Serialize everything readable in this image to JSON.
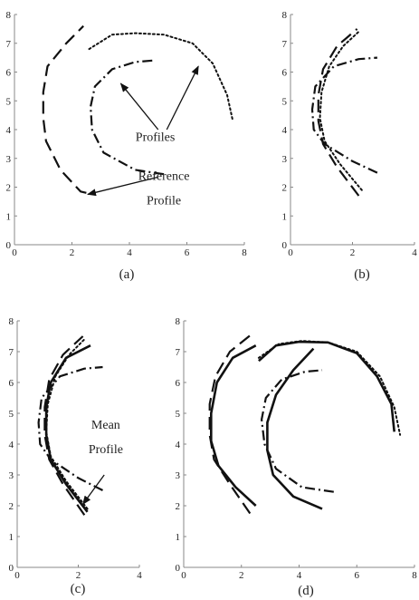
{
  "chart_data": [
    {
      "id": "a",
      "type": "line",
      "panel_label": "(a)",
      "xlim": [
        0,
        8
      ],
      "ylim": [
        0,
        8
      ],
      "xticks": [
        "0",
        "2",
        "4",
        "6",
        "8"
      ],
      "yticks": [
        "0",
        "1",
        "2",
        "3",
        "4",
        "5",
        "6",
        "7",
        "8"
      ],
      "axes": "left-bottom",
      "series": [
        {
          "style": "dashed",
          "x": [
            2.5,
            2.3,
            1.6,
            1.1,
            1.0,
            1.0,
            1.15,
            1.8,
            2.4
          ],
          "y": [
            1.8,
            1.85,
            2.6,
            3.6,
            4.4,
            5.3,
            6.2,
            7.0,
            7.6
          ]
        },
        {
          "style": "dotted",
          "x": [
            2.6,
            3.4,
            4.2,
            5.2,
            6.2,
            6.9,
            7.4,
            7.6
          ],
          "y": [
            6.8,
            7.3,
            7.35,
            7.3,
            7.0,
            6.3,
            5.2,
            4.3
          ]
        },
        {
          "style": "dashdot",
          "x": [
            5.2,
            4.2,
            3.1,
            2.7,
            2.65,
            2.8,
            3.4,
            4.2,
            4.8
          ],
          "y": [
            2.45,
            2.6,
            3.2,
            4.0,
            4.8,
            5.5,
            6.1,
            6.35,
            6.4
          ]
        }
      ],
      "annotations": [
        {
          "text": "Profiles",
          "x": 4.9,
          "y": 3.6
        },
        {
          "text": "Reference",
          "x": 5.2,
          "y": 2.25
        },
        {
          "text": "Profile",
          "x": 5.2,
          "y": 1.4
        }
      ],
      "arrows": [
        {
          "from": [
            5.0,
            4.0
          ],
          "to": [
            3.7,
            5.6
          ]
        },
        {
          "from": [
            5.3,
            4.0
          ],
          "to": [
            6.4,
            6.2
          ]
        },
        {
          "from": [
            5.0,
            2.35
          ],
          "to": [
            2.55,
            1.75
          ]
        }
      ]
    },
    {
      "id": "b",
      "type": "line",
      "panel_label": "(b)",
      "xlim": [
        0,
        4
      ],
      "ylim": [
        0,
        8
      ],
      "xticks": [
        "0",
        "2",
        "4"
      ],
      "yticks": [
        "0",
        "1",
        "2",
        "3",
        "4",
        "5",
        "6",
        "7",
        "8"
      ],
      "axes": "left-bottom",
      "series": [
        {
          "style": "dashed",
          "x": [
            2.2,
            1.5,
            1.05,
            0.9,
            0.9,
            1.05,
            1.5,
            2.15
          ],
          "y": [
            1.7,
            2.7,
            3.5,
            4.3,
            5.2,
            6.1,
            6.9,
            7.5
          ]
        },
        {
          "style": "dotted",
          "x": [
            2.3,
            1.6,
            1.1,
            0.95,
            1.0,
            1.25,
            1.7,
            2.2
          ],
          "y": [
            1.9,
            2.8,
            3.6,
            4.4,
            5.3,
            6.2,
            6.9,
            7.4
          ]
        },
        {
          "style": "dashdot",
          "x": [
            2.8,
            2.0,
            1.1,
            0.75,
            0.7,
            0.8,
            1.4,
            2.2,
            2.8
          ],
          "y": [
            2.5,
            2.9,
            3.5,
            4.0,
            4.7,
            5.5,
            6.2,
            6.45,
            6.5
          ]
        }
      ]
    },
    {
      "id": "c",
      "type": "line",
      "panel_label": "(c)",
      "xlim": [
        0,
        4
      ],
      "ylim": [
        0,
        8
      ],
      "xticks": [
        "0",
        "2",
        "4"
      ],
      "yticks": [
        "0",
        "1",
        "2",
        "3",
        "4",
        "5",
        "6",
        "7",
        "8"
      ],
      "axes": "left-bottom",
      "series": [
        {
          "style": "dashed",
          "x": [
            2.2,
            1.5,
            1.05,
            0.9,
            0.9,
            1.05,
            1.5,
            2.15
          ],
          "y": [
            1.7,
            2.7,
            3.5,
            4.3,
            5.2,
            6.1,
            6.9,
            7.5
          ]
        },
        {
          "style": "dotted",
          "x": [
            2.3,
            1.6,
            1.1,
            0.95,
            1.0,
            1.25,
            1.7,
            2.2
          ],
          "y": [
            1.9,
            2.8,
            3.6,
            4.4,
            5.3,
            6.2,
            6.9,
            7.4
          ]
        },
        {
          "style": "dashdot",
          "x": [
            2.8,
            2.0,
            1.1,
            0.75,
            0.7,
            0.8,
            1.4,
            2.2,
            2.8
          ],
          "y": [
            2.5,
            2.9,
            3.5,
            4.0,
            4.7,
            5.5,
            6.2,
            6.45,
            6.5
          ]
        },
        {
          "style": "solid",
          "x": [
            2.3,
            1.6,
            1.1,
            0.95,
            0.95,
            1.1,
            1.6,
            2.4
          ],
          "y": [
            1.8,
            2.7,
            3.5,
            4.3,
            5.2,
            6.0,
            6.8,
            7.2
          ]
        }
      ],
      "annotations": [
        {
          "text": "Mean",
          "x": 2.9,
          "y": 4.5
        },
        {
          "text": "Profile",
          "x": 2.9,
          "y": 3.7
        }
      ],
      "arrows": [
        {
          "from": [
            2.85,
            3.0
          ],
          "to": [
            2.15,
            2.05
          ]
        }
      ]
    },
    {
      "id": "d",
      "type": "line",
      "panel_label": "(d)",
      "xlim": [
        0,
        8
      ],
      "ylim": [
        0,
        8
      ],
      "xticks": [
        "0",
        "2",
        "4",
        "6",
        "8"
      ],
      "yticks": [
        "0",
        "1",
        "2",
        "3",
        "4",
        "5",
        "6",
        "7",
        "8"
      ],
      "axes": "left-bottom",
      "series": [
        {
          "style": "dashed",
          "x": [
            2.3,
            1.6,
            1.05,
            0.9,
            0.9,
            1.1,
            1.6,
            2.4
          ],
          "y": [
            1.75,
            2.7,
            3.5,
            4.3,
            5.3,
            6.2,
            7.0,
            7.6
          ]
        },
        {
          "style": "solid",
          "x": [
            2.5,
            1.8,
            1.2,
            0.95,
            0.95,
            1.15,
            1.7,
            2.5
          ],
          "y": [
            2.0,
            2.6,
            3.3,
            4.1,
            5.0,
            6.0,
            6.8,
            7.2
          ]
        },
        {
          "style": "dotted",
          "x": [
            2.6,
            3.3,
            4.1,
            5.0,
            6.0,
            6.8,
            7.3,
            7.5
          ],
          "y": [
            6.8,
            7.25,
            7.35,
            7.3,
            7.0,
            6.2,
            5.2,
            4.3
          ]
        },
        {
          "style": "solid",
          "x": [
            2.6,
            3.2,
            4.0,
            5.0,
            6.0,
            6.7,
            7.2,
            7.3
          ],
          "y": [
            6.7,
            7.2,
            7.32,
            7.3,
            6.95,
            6.2,
            5.3,
            4.4
          ]
        },
        {
          "style": "dashdot",
          "x": [
            5.2,
            4.1,
            3.2,
            2.8,
            2.7,
            2.85,
            3.4,
            4.2,
            4.8
          ],
          "y": [
            2.45,
            2.6,
            3.2,
            4.0,
            4.8,
            5.5,
            6.1,
            6.35,
            6.4
          ]
        },
        {
          "style": "solid",
          "x": [
            4.8,
            3.8,
            3.1,
            2.9,
            2.9,
            3.2,
            3.8,
            4.5
          ],
          "y": [
            1.9,
            2.3,
            3.0,
            3.8,
            4.7,
            5.6,
            6.4,
            7.1
          ]
        }
      ]
    }
  ]
}
